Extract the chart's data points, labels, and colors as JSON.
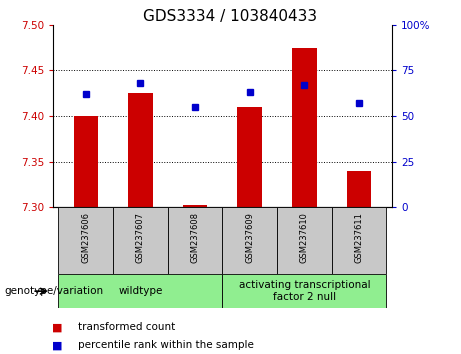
{
  "title": "GDS3334 / 103840433",
  "samples": [
    "GSM237606",
    "GSM237607",
    "GSM237608",
    "GSM237609",
    "GSM237610",
    "GSM237611"
  ],
  "transformed_count": [
    7.4,
    7.425,
    7.302,
    7.41,
    7.475,
    7.34
  ],
  "percentile_rank": [
    62,
    68,
    55,
    63,
    67,
    57
  ],
  "ylim_left": [
    7.3,
    7.5
  ],
  "ylim_right": [
    0,
    100
  ],
  "yticks_left": [
    7.3,
    7.35,
    7.4,
    7.45,
    7.5
  ],
  "yticks_right": [
    0,
    25,
    50,
    75,
    100
  ],
  "bar_color": "#cc0000",
  "point_color": "#0000cc",
  "bar_baseline": 7.3,
  "tick_area_color": "#c8c8c8",
  "group1_label": "wildtype",
  "group2_label": "activating transcriptional\nfactor 2 null",
  "group1_indices": [
    0,
    1,
    2
  ],
  "group2_indices": [
    3,
    4,
    5
  ],
  "group_color": "#90ee90",
  "genotype_label": "genotype/variation",
  "legend_bar_label": "transformed count",
  "legend_point_label": "percentile rank within the sample",
  "title_fontsize": 11,
  "tick_fontsize": 7.5,
  "sample_fontsize": 6,
  "group_fontsize": 7.5,
  "legend_fontsize": 7.5,
  "genotype_fontsize": 7.5,
  "grid_yticks": [
    7.35,
    7.4,
    7.45
  ],
  "bar_width": 0.45
}
